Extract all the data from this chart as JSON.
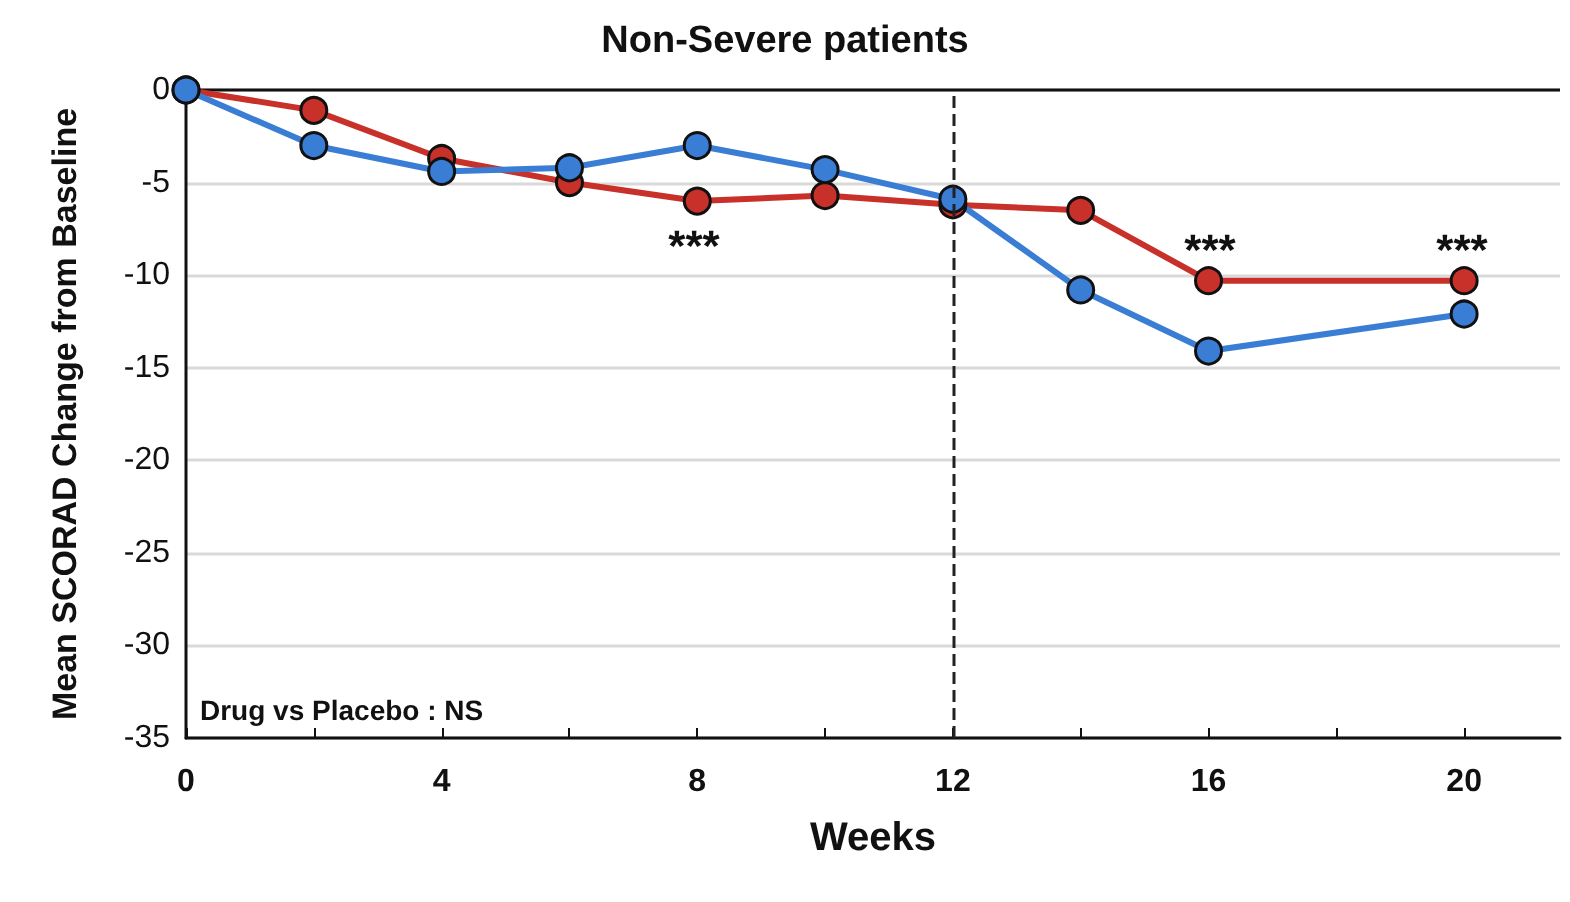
{
  "chart_data": {
    "type": "line",
    "title": "Non-Severe patients",
    "xlabel": "Weeks",
    "ylabel": "Mean SCORAD Change from Baseline",
    "x": [
      0,
      2,
      4,
      6,
      8,
      10,
      12,
      14,
      16,
      20
    ],
    "series": [
      {
        "color": "#c8302a",
        "values": [
          0,
          -1.1,
          -3.7,
          -5.0,
          -6.0,
          -5.7,
          -6.2,
          -6.5,
          -10.3,
          -10.3
        ]
      },
      {
        "color": "#3a7dd4",
        "values": [
          0,
          -3.0,
          -4.4,
          -4.2,
          -3.0,
          -4.3,
          -5.9,
          -10.8,
          -14.1,
          -12.1
        ]
      }
    ],
    "xlim": [
      0,
      21.5
    ],
    "xticks": [
      0,
      {
        "value": 2,
        "label": null
      },
      4,
      {
        "value": 6,
        "label": null
      },
      8,
      {
        "value": 10,
        "label": null
      },
      12,
      {
        "value": 14,
        "label": null
      },
      16,
      {
        "value": 18,
        "label": null
      },
      20
    ],
    "ylim": [
      -35,
      0
    ],
    "yticks": [
      -35,
      -30,
      -25,
      -20,
      -15,
      -10,
      -5,
      0
    ],
    "grid": "y",
    "marker": "circle",
    "line_style": "solid",
    "ref_lines": [
      {
        "axis": "x",
        "value": 12,
        "label": null,
        "line_style": "dashed",
        "color": "#222222"
      }
    ],
    "annotations": [
      "***",
      "***",
      "***",
      "Drug vs Placebo : NS"
    ]
  }
}
